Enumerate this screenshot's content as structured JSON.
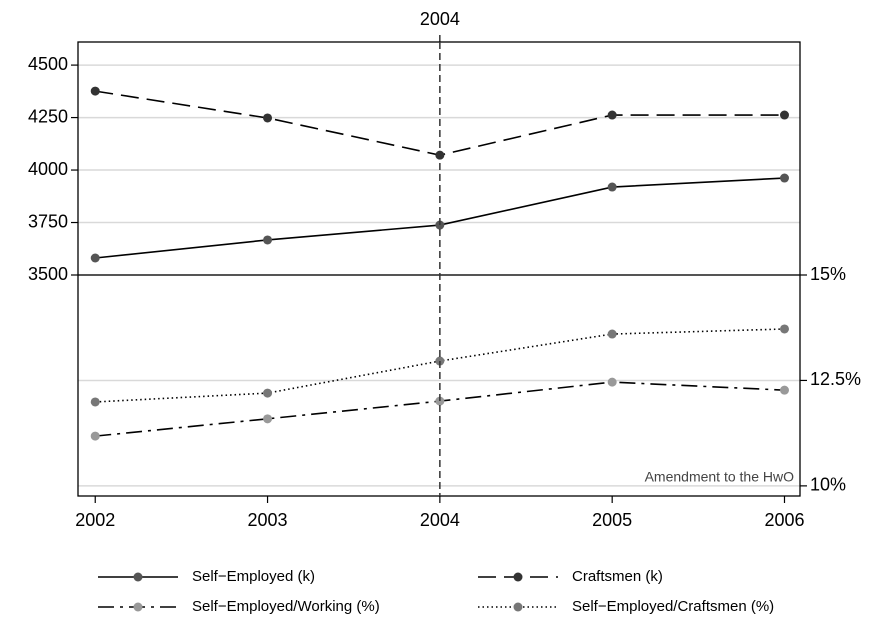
{
  "chart_data": [
    {
      "type": "line",
      "x": [
        2002,
        2003,
        2004,
        2005,
        2006
      ],
      "xlim": [
        2001.9,
        2006.09
      ],
      "ylim": [
        3500,
        4610
      ],
      "yticks": [
        3500,
        3750,
        4000,
        4250,
        4500
      ],
      "grid": true,
      "vline": {
        "x": 2004,
        "label": "2004"
      },
      "series": [
        {
          "name": "Self−Employed (k)",
          "color": "#555555",
          "line_style": "solid",
          "values": [
            3581,
            3667,
            3738,
            3919,
            3962
          ]
        },
        {
          "name": "Craftsmen (k)",
          "color": "#333333",
          "line_style": "dashed",
          "values": [
            4376,
            4248,
            4071,
            4262,
            4262
          ]
        }
      ]
    },
    {
      "type": "line",
      "x": [
        2002,
        2003,
        2004,
        2005,
        2006
      ],
      "xlim": [
        2001.9,
        2006.09
      ],
      "xticks": [
        2002,
        2003,
        2004,
        2005,
        2006
      ],
      "ylim": [
        9.76,
        15
      ],
      "yticks": [
        {
          "value": 10,
          "label": "10%"
        },
        {
          "value": 12.5,
          "label": "12.5%"
        },
        {
          "value": 15,
          "label": "15%"
        }
      ],
      "grid": true,
      "annotation": "Amendment to the HwO",
      "series": [
        {
          "name": "Self−Employed/Working (%)",
          "color": "#999999",
          "line_style": "dashdot",
          "values": [
            11.18,
            11.59,
            12.01,
            12.46,
            12.27
          ]
        },
        {
          "name": "Self−Employed/Craftsmen (%)",
          "color": "#777777",
          "line_style": "dotted",
          "values": [
            11.99,
            12.2,
            12.96,
            13.6,
            13.72
          ]
        }
      ]
    }
  ]
}
